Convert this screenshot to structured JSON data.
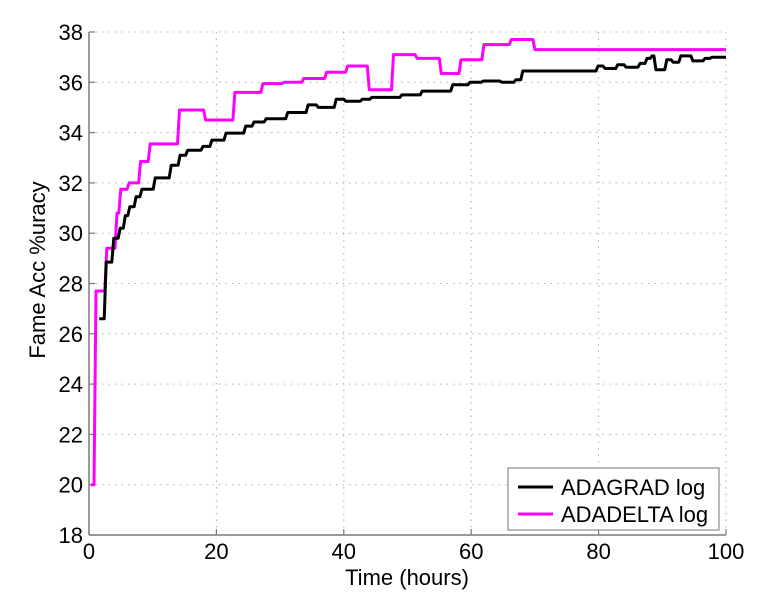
{
  "chart_data": {
    "type": "line",
    "title": "",
    "xlabel": "Time (hours)",
    "ylabel": "Fame Acc %uracy",
    "xlim": [
      0,
      100
    ],
    "ylim": [
      18,
      38
    ],
    "xticks": [
      0,
      20,
      40,
      60,
      80,
      100
    ],
    "yticks": [
      18,
      20,
      22,
      24,
      26,
      28,
      30,
      32,
      34,
      36,
      38
    ],
    "grid": true,
    "legend_position": "lower right",
    "step": true,
    "series": [
      {
        "name": "ADAGRAD log",
        "color": "#000000",
        "x": [
          1.6,
          2.7,
          3.9,
          4.9,
          5.7,
          6.4,
          7.4,
          8.3,
          10.4,
          12.9,
          14.3,
          15.5,
          17.9,
          19.3,
          21.5,
          24.6,
          25.9,
          27.8,
          31.2,
          34.4,
          36.0,
          38.8,
          40.3,
          42.9,
          44.4,
          49.1,
          52.3,
          57.1,
          59.8,
          61.9,
          64.8,
          67.0,
          68.1,
          79.9,
          81.0,
          83.0,
          84.3,
          86.5,
          87.6,
          88.4,
          89.0,
          90.1,
          90.7,
          91.7,
          92.9,
          94.8,
          96.7,
          97.8,
          100
        ],
        "values": [
          26.6,
          28.85,
          29.8,
          30.2,
          30.7,
          31.05,
          31.45,
          31.75,
          32.2,
          32.7,
          33.1,
          33.3,
          33.45,
          33.7,
          33.98,
          34.26,
          34.42,
          34.55,
          34.8,
          35.1,
          35.0,
          35.33,
          35.25,
          35.33,
          35.4,
          35.5,
          35.65,
          35.9,
          36.0,
          36.05,
          36.0,
          36.1,
          36.45,
          36.65,
          36.55,
          36.7,
          36.6,
          36.75,
          36.95,
          37.05,
          36.5,
          36.5,
          36.9,
          36.8,
          37.05,
          36.85,
          36.95,
          37.0,
          37.0
        ]
      },
      {
        "name": "ADADELTA log",
        "color": "#ff00ff",
        "x": [
          0.3,
          1.1,
          2.8,
          4.4,
          5.0,
          6.3,
          8.1,
          9.6,
          14.2,
          18.3,
          22.9,
          27.3,
          30.6,
          33.7,
          37.3,
          40.6,
          44.0,
          47.8,
          51.5,
          55.3,
          58.4,
          62.0,
          66.3,
          70.0,
          100
        ],
        "values": [
          20.0,
          27.7,
          29.4,
          30.8,
          31.75,
          32.0,
          32.85,
          33.55,
          34.9,
          34.5,
          35.6,
          35.95,
          36.0,
          36.15,
          36.4,
          36.65,
          35.7,
          37.1,
          36.95,
          36.35,
          36.9,
          37.5,
          37.7,
          37.3,
          37.3
        ]
      }
    ]
  },
  "legend": {
    "items": [
      {
        "label": "ADAGRAD log",
        "color": "#000000"
      },
      {
        "label": "ADADELTA log",
        "color": "#ff00ff"
      }
    ]
  }
}
